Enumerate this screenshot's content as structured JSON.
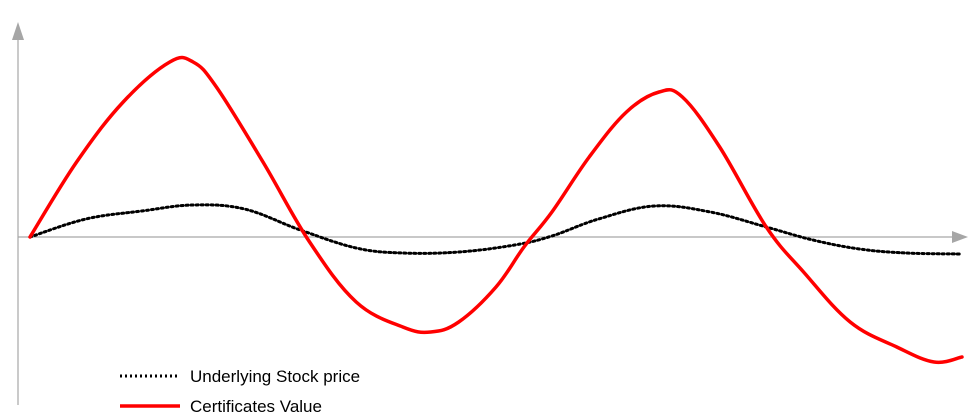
{
  "chart_data": {
    "type": "line",
    "title": "",
    "xlabel": "",
    "ylabel": "",
    "grid": false,
    "axes": {
      "y_axis_arrow": true,
      "x_axis_arrow": true,
      "tick_labels": false
    },
    "legend_placement": "bottom-left",
    "xlim": [
      0,
      100
    ],
    "ylim": [
      -12,
      19
    ],
    "series": [
      {
        "name": "Underlying Stock price",
        "style": "dotted",
        "color": "#000000",
        "x": [
          0,
          6,
          12,
          17.5,
          23,
          29,
          35,
          40,
          46,
          52,
          56,
          61,
          67,
          73,
          79,
          84,
          89,
          94,
          100
        ],
        "y": [
          0,
          1.8,
          2.6,
          3.2,
          2.8,
          0.7,
          -1.1,
          -1.6,
          -1.5,
          -0.8,
          0.1,
          1.8,
          3.1,
          2.5,
          1.0,
          -0.3,
          -1.2,
          -1.6,
          -1.7
        ]
      },
      {
        "name": "Certificates Value",
        "style": "solid",
        "color": "#ff0000",
        "x": [
          0,
          5,
          10,
          15,
          17.5,
          20,
          25,
          30,
          35,
          40,
          43,
          46,
          50,
          53,
          56,
          60,
          64,
          67.5,
          70,
          74,
          79,
          83,
          88,
          93,
          97,
          100
        ],
        "y": [
          0,
          7.5,
          13.5,
          17.5,
          17.5,
          15,
          7.5,
          -0.5,
          -6.5,
          -9,
          -9.5,
          -8.5,
          -5,
          -1,
          2.5,
          8,
          12.5,
          14.5,
          14,
          9,
          1,
          -3.5,
          -8.5,
          -11,
          -12.5,
          -12
        ]
      }
    ]
  },
  "legend": {
    "items": [
      {
        "label": "Underlying Stock price",
        "style": "dotted",
        "color": "#000000"
      },
      {
        "label": "Certificates Value",
        "style": "solid",
        "color": "#ff0000"
      }
    ]
  }
}
